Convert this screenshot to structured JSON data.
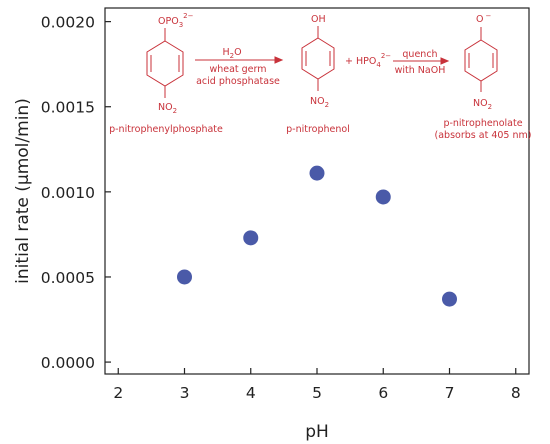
{
  "chart_data": {
    "type": "scatter",
    "xlabel": "pH",
    "ylabel": "initial rate (µmol/min)",
    "xlim": [
      1.8,
      8.2
    ],
    "ylim": [
      -7e-05,
      0.00208
    ],
    "x_ticks": [
      "2",
      "3",
      "4",
      "5",
      "6",
      "7",
      "8"
    ],
    "y_ticks": [
      "0.0000",
      "0.0005",
      "0.0010",
      "0.0015",
      "0.0020"
    ],
    "x_tick_values": [
      2,
      3,
      4,
      5,
      6,
      7,
      8
    ],
    "y_tick_values": [
      0,
      0.0005,
      0.001,
      0.0015,
      0.002
    ],
    "grid": false,
    "legend": "none",
    "point_color": "#4a5aa8",
    "series": [
      {
        "x": [
          3,
          4,
          5,
          6,
          7
        ],
        "y": [
          0.0005,
          0.00073,
          0.00111,
          0.00097,
          0.00037
        ]
      }
    ]
  },
  "scheme": {
    "color": "#c8323a",
    "reactant_group": "OPO",
    "reactant_group_sub": "3",
    "reactant_group_sup": "2−",
    "reactant_para": "NO",
    "reactant_para_sub": "2",
    "reactant_name": "p-nitrophenylphosphate",
    "arrow1_above": "H",
    "arrow1_above_sub": "2",
    "arrow1_above_tail": "O",
    "arrow1_below_1": "wheat germ",
    "arrow1_below_2": "acid phosphatase",
    "product_group": "OH",
    "product_para": "NO",
    "product_para_sub": "2",
    "product_name": "p-nitrophenol",
    "byproduct": "+ HPO",
    "byproduct_sub": "4",
    "byproduct_sup": "2−",
    "arrow2_above": "quench",
    "arrow2_below": "with NaOH",
    "final_group": "O",
    "final_group_sup": "−",
    "final_para": "NO",
    "final_para_sub": "2",
    "final_name": "p-nitrophenolate",
    "final_note": "(absorbs at 405 nm)"
  }
}
